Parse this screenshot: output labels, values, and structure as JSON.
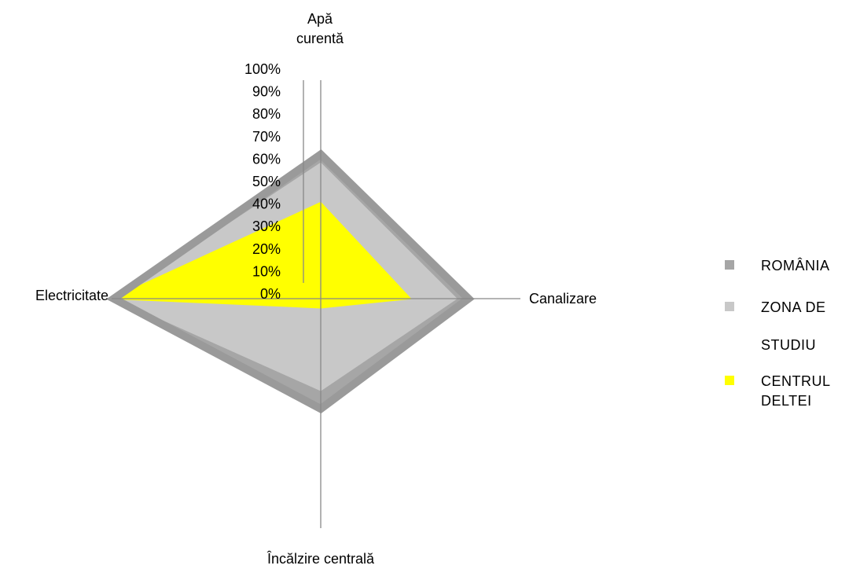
{
  "chart_data": {
    "type": "radar",
    "axes": [
      "Apă curentă",
      "Canalizare",
      "Încălzire centrală",
      "Electricitate"
    ],
    "axis_label_lines": [
      [
        "Apă",
        "curentă"
      ],
      [
        "Canalizare"
      ],
      [
        "Încălzire centrală"
      ],
      [
        "Electricitate"
      ]
    ],
    "ticks": [
      "0%",
      "10%",
      "20%",
      "30%",
      "40%",
      "50%",
      "60%",
      "70%",
      "80%",
      "90%",
      "100%"
    ],
    "range": [
      0,
      100
    ],
    "series": [
      {
        "name": "ROMÂNIA",
        "color": "#a6a6a6",
        "values": [
          66,
          74,
          48,
          99
        ]
      },
      {
        "name": "ZONA DE STUDIU",
        "color": "#c8c8c8",
        "values": [
          62,
          68,
          40,
          98
        ]
      },
      {
        "name": "CENTRUL DELTEI",
        "color": "#ffff00",
        "values": [
          44,
          45,
          4,
          100
        ]
      }
    ],
    "legend_lines": [
      [
        "ROMÂNIA"
      ],
      [
        "ZONA   DE",
        "STUDIU"
      ],
      [
        "CENTRUL",
        "DELTEI"
      ]
    ],
    "legend_position": "right",
    "grid": false
  }
}
